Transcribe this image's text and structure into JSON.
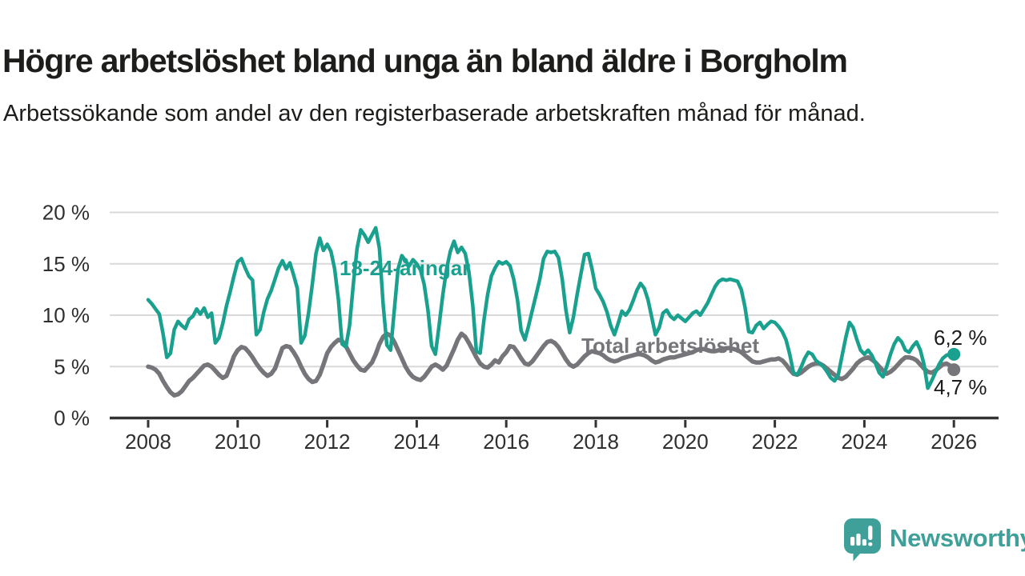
{
  "header": {
    "title": "Högre arbetslöshet bland unga än bland äldre i Borgholm",
    "subtitle": "Arbetssökande som andel av den registerbaserade arbetskraften månad för månad."
  },
  "colors": {
    "axis": "#333333",
    "grid": "#d9d9d9",
    "tick_label": "#2f2f2f",
    "text": "#1d1d1b"
  },
  "branding": {
    "logo_text": "Newsworthy",
    "logo_color": "#3f9f99"
  },
  "chart_data": {
    "type": "line",
    "unit": "%",
    "x_start": "2008-01",
    "x_end": "2026-01",
    "points_per_year": 12,
    "ylim": [
      0,
      20
    ],
    "grid": true,
    "legend_position": "inline-labels",
    "yticks": [
      {
        "value": 0,
        "label": "0 %"
      },
      {
        "value": 5,
        "label": "5 %"
      },
      {
        "value": 10,
        "label": "10 %"
      },
      {
        "value": 15,
        "label": "15 %"
      },
      {
        "value": 20,
        "label": "20 %"
      }
    ],
    "xticks": [
      {
        "year": 2008,
        "label": "2008"
      },
      {
        "year": 2010,
        "label": "2010"
      },
      {
        "year": 2012,
        "label": "2012"
      },
      {
        "year": 2014,
        "label": "2014"
      },
      {
        "year": 2016,
        "label": "2016"
      },
      {
        "year": 2018,
        "label": "2018"
      },
      {
        "year": 2020,
        "label": "2020"
      },
      {
        "year": 2022,
        "label": "2022"
      },
      {
        "year": 2024,
        "label": "2024"
      },
      {
        "year": 2026,
        "label": "2026"
      }
    ],
    "series": [
      {
        "name": "Total arbetslöshet",
        "color": "#76767a",
        "end_label": "4,7 %",
        "last_value": 4.7,
        "values": [
          5.0,
          4.9,
          4.7,
          4.3,
          3.6,
          3.0,
          2.5,
          2.2,
          2.3,
          2.6,
          3.1,
          3.6,
          3.9,
          4.3,
          4.7,
          5.1,
          5.2,
          5.0,
          4.6,
          4.2,
          3.9,
          4.1,
          5.0,
          6.0,
          6.6,
          6.9,
          6.8,
          6.4,
          5.9,
          5.3,
          4.8,
          4.4,
          4.1,
          4.3,
          4.8,
          5.8,
          6.8,
          7.0,
          6.9,
          6.4,
          5.8,
          5.0,
          4.3,
          3.8,
          3.5,
          3.6,
          4.2,
          5.2,
          6.3,
          6.9,
          7.3,
          7.6,
          7.5,
          7.0,
          6.3,
          5.6,
          5.1,
          4.7,
          4.6,
          5.0,
          5.4,
          6.2,
          7.2,
          7.9,
          8.2,
          8.0,
          7.4,
          6.6,
          5.8,
          5.0,
          4.4,
          4.0,
          3.8,
          3.7,
          4.0,
          4.5,
          5.0,
          5.2,
          5.0,
          4.7,
          5.1,
          5.9,
          6.7,
          7.6,
          8.2,
          7.9,
          7.3,
          6.6,
          5.9,
          5.3,
          5.0,
          4.9,
          5.2,
          5.6,
          5.4,
          6.0,
          6.4,
          7.0,
          6.9,
          6.4,
          5.8,
          5.3,
          5.2,
          5.5,
          6.0,
          6.5,
          7.0,
          7.4,
          7.5,
          7.3,
          6.9,
          6.3,
          5.7,
          5.2,
          5.0,
          5.2,
          5.6,
          6.0,
          6.3,
          6.5,
          6.4,
          6.3,
          6.1,
          5.8,
          5.6,
          5.5,
          5.6,
          5.8,
          5.9,
          6.0,
          6.1,
          6.2,
          6.2,
          6.1,
          5.9,
          5.6,
          5.4,
          5.5,
          5.7,
          5.8,
          5.9,
          5.9,
          6.0,
          6.1,
          6.2,
          6.3,
          6.4,
          6.6,
          6.7,
          6.7,
          6.6,
          6.5,
          6.5,
          6.6,
          6.7,
          6.8,
          6.8,
          6.7,
          6.6,
          6.4,
          6.1,
          5.8,
          5.5,
          5.4,
          5.4,
          5.5,
          5.6,
          5.7,
          5.7,
          5.8,
          5.6,
          5.2,
          4.7,
          4.3,
          4.2,
          4.4,
          4.7,
          5.0,
          5.2,
          5.3,
          5.3,
          5.1,
          4.8,
          4.5,
          4.2,
          3.9,
          3.8,
          4.0,
          4.4,
          4.8,
          5.3,
          5.6,
          5.8,
          5.9,
          5.7,
          5.4,
          5.0,
          4.6,
          4.3,
          4.5,
          4.8,
          5.2,
          5.6,
          5.9,
          5.9,
          5.8,
          5.6,
          5.2,
          4.8,
          4.5,
          4.4,
          4.6,
          4.9,
          5.2,
          5.3,
          5.1,
          4.7
        ]
      },
      {
        "name": "18-24-åringar",
        "color": "#1aa08e",
        "end_label": "6,2 %",
        "last_value": 6.2,
        "values": [
          11.5,
          11.1,
          10.6,
          10.1,
          8.2,
          5.9,
          6.3,
          8.6,
          9.4,
          9.0,
          8.7,
          9.6,
          9.9,
          10.6,
          10.1,
          10.7,
          9.8,
          10.2,
          7.3,
          7.8,
          9.2,
          10.9,
          12.3,
          13.8,
          15.2,
          15.5,
          14.6,
          13.8,
          13.4,
          8.1,
          8.6,
          10.3,
          11.6,
          12.4,
          13.5,
          14.6,
          15.3,
          14.5,
          15.1,
          13.9,
          12.6,
          7.3,
          8.0,
          10.2,
          13.0,
          16.0,
          17.5,
          16.3,
          16.9,
          16.2,
          14.5,
          11.5,
          7.2,
          6.9,
          9.0,
          13.0,
          16.5,
          18.3,
          17.8,
          17.1,
          17.8,
          18.5,
          16.5,
          11.0,
          7.1,
          6.6,
          10.5,
          14.5,
          15.8,
          15.3,
          14.8,
          15.4,
          15.0,
          14.4,
          13.0,
          10.5,
          7.0,
          6.2,
          9.0,
          12.0,
          14.5,
          16.2,
          17.2,
          16.1,
          16.6,
          16.0,
          14.2,
          11.0,
          6.5,
          6.3,
          9.5,
          12.0,
          13.8,
          14.6,
          15.2,
          15.0,
          15.2,
          14.8,
          13.5,
          11.5,
          8.5,
          7.6,
          9.0,
          10.5,
          12.0,
          13.5,
          15.5,
          16.2,
          16.1,
          16.2,
          15.6,
          13.5,
          10.5,
          8.3,
          9.8,
          12.0,
          14.0,
          15.9,
          16.0,
          14.5,
          12.6,
          12.0,
          11.3,
          10.3,
          9.0,
          8.1,
          9.2,
          10.4,
          10.0,
          10.5,
          11.4,
          12.4,
          13.1,
          12.6,
          11.5,
          9.8,
          8.1,
          8.8,
          10.2,
          10.5,
          9.9,
          9.6,
          10.0,
          9.7,
          9.4,
          9.8,
          10.2,
          10.4,
          10.0,
          10.6,
          11.2,
          12.0,
          12.8,
          13.3,
          13.5,
          13.4,
          13.5,
          13.4,
          13.3,
          12.5,
          10.8,
          8.4,
          8.3,
          9.0,
          9.3,
          8.7,
          9.1,
          9.4,
          9.3,
          8.9,
          8.4,
          7.6,
          6.2,
          4.4,
          4.2,
          4.9,
          5.8,
          6.4,
          6.2,
          5.6,
          5.3,
          5.0,
          4.5,
          3.9,
          3.6,
          4.2,
          6.0,
          7.8,
          9.3,
          8.8,
          7.6,
          6.6,
          6.2,
          6.6,
          6.1,
          5.3,
          4.4,
          4.0,
          5.0,
          6.2,
          7.2,
          7.8,
          7.4,
          6.6,
          6.4,
          7.0,
          7.4,
          6.6,
          5.2,
          2.9,
          3.6,
          4.4,
          5.2,
          5.8,
          6.1,
          6.2,
          6.2
        ]
      }
    ]
  }
}
